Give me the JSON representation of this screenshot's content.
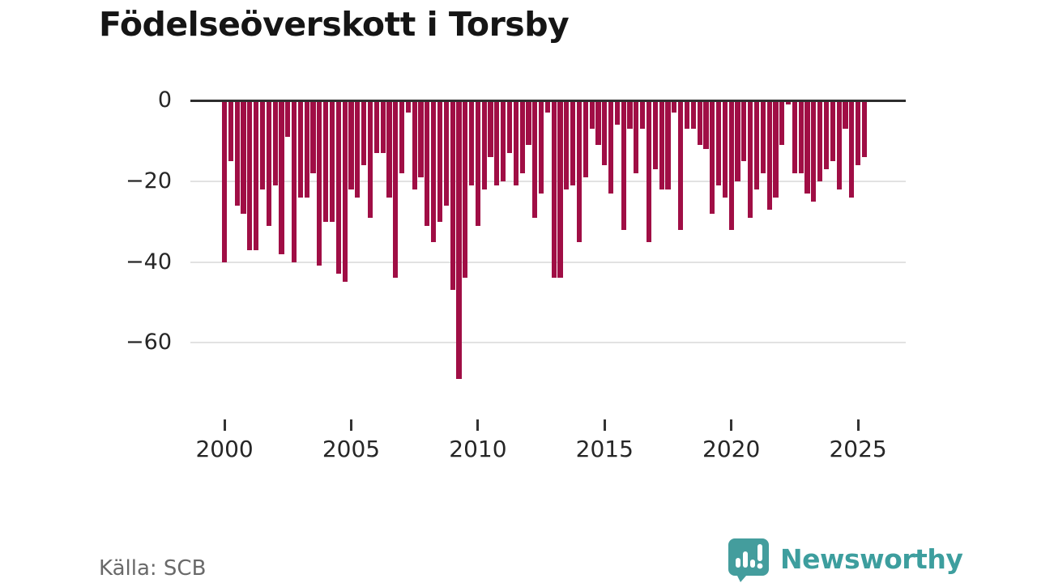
{
  "title": "Födelseöverskott i Torsby",
  "source": "Källa: SCB",
  "brand": {
    "name": "Newsworthy",
    "color": "#3d9e9e",
    "icon": "newsworthy-logo-icon"
  },
  "chart_data": {
    "type": "bar",
    "title": "Födelseöverskott i Torsby",
    "period": "quarterly",
    "start_period": "2000 Q1",
    "end_period": "2025 Q2",
    "bar_color": "#a00e45",
    "x_tick_labels": [
      "2000",
      "2005",
      "2010",
      "2015",
      "2020",
      "2025"
    ],
    "y_ticks": [
      0,
      -20,
      -40,
      -60
    ],
    "y_tick_labels": [
      "0",
      "−20",
      "−40",
      "−60"
    ],
    "ylim": [
      -72,
      0
    ],
    "grid": "horizontal",
    "legend": "none",
    "values": [
      -40,
      -15,
      -26,
      -28,
      -37,
      -37,
      -22,
      -31,
      -21,
      -38,
      -9,
      -40,
      -24,
      -24,
      -18,
      -41,
      -30,
      -30,
      -43,
      -45,
      -22,
      -24,
      -16,
      -29,
      -13,
      -13,
      -24,
      -44,
      -18,
      -3,
      -22,
      -19,
      -31,
      -35,
      -30,
      -26,
      -47,
      -69,
      -44,
      -21,
      -31,
      -22,
      -14,
      -21,
      -20,
      -13,
      -21,
      -18,
      -11,
      -29,
      -23,
      -3,
      -44,
      -44,
      -22,
      -21,
      -35,
      -19,
      -7,
      -11,
      -16,
      -23,
      -6,
      -32,
      -7,
      -18,
      -7,
      -35,
      -17,
      -22,
      -22,
      -3,
      -32,
      -7,
      -7,
      -11,
      -12,
      -28,
      -21,
      -24,
      -32,
      -20,
      -15,
      -29,
      -22,
      -18,
      -27,
      -24,
      -11,
      -1,
      -18,
      -18,
      -23,
      -25,
      -20,
      -17,
      -15,
      -22,
      -7,
      -24,
      -16,
      -14
    ]
  }
}
